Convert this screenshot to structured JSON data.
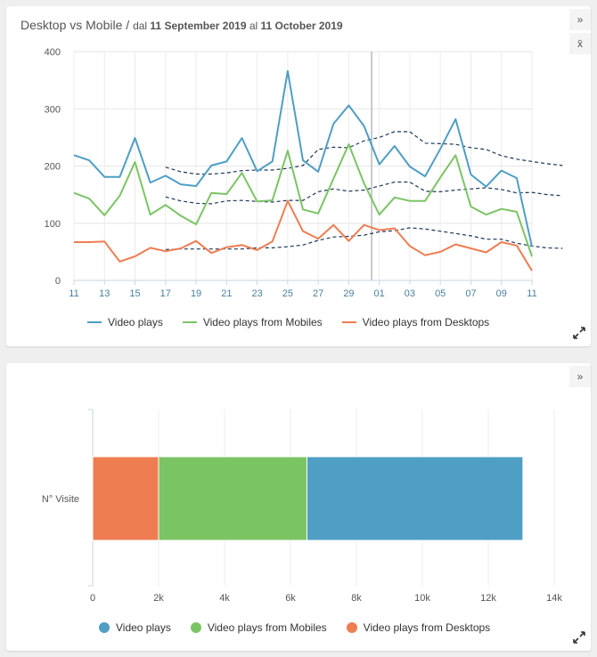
{
  "card1": {
    "title_prefix": "Desktop vs Mobile / ",
    "title_dal": "dal ",
    "title_start": "11 September 2019",
    "title_al": " al ",
    "title_end": "11 October 2019",
    "sidebar_buttons": [
      "»",
      "x̄"
    ]
  },
  "card2": {
    "sidebar_buttons": [
      "»"
    ]
  },
  "colors": {
    "video_plays": "#4f9ec4",
    "mobiles": "#7bc464",
    "desktops": "#ee7d52",
    "trend": "#1d3557"
  },
  "chart_data": [
    {
      "type": "line",
      "xlabel": "",
      "ylabel": "",
      "ylim": [
        0,
        400
      ],
      "yticks": [
        "0",
        "100",
        "200",
        "300",
        "400"
      ],
      "x": [
        "11",
        "12",
        "13",
        "14",
        "15",
        "16",
        "17",
        "18",
        "19",
        "20",
        "21",
        "22",
        "23",
        "24",
        "25",
        "26",
        "27",
        "28",
        "29",
        "30",
        "01",
        "02",
        "03",
        "04",
        "05",
        "06",
        "07",
        "08",
        "09",
        "10",
        "11"
      ],
      "xtick_labels": [
        "11",
        "13",
        "15",
        "17",
        "19",
        "21",
        "23",
        "25",
        "27",
        "29",
        "01",
        "03",
        "05",
        "07",
        "09",
        "11"
      ],
      "vertical_marker_at": "30",
      "grid": true,
      "legend_position": "bottom",
      "series": [
        {
          "name": "Video plays",
          "color_key": "video_plays",
          "values": [
            219,
            210,
            181,
            181,
            249,
            171,
            183,
            168,
            165,
            201,
            208,
            249,
            191,
            208,
            366,
            210,
            190,
            274,
            306,
            270,
            203,
            235,
            199,
            182,
            230,
            282,
            185,
            164,
            192,
            179,
            59
          ]
        },
        {
          "name": "Video plays from Mobiles",
          "color_key": "mobiles",
          "values": [
            153,
            143,
            114,
            148,
            207,
            115,
            132,
            113,
            98,
            153,
            151,
            188,
            138,
            140,
            227,
            124,
            117,
            178,
            238,
            170,
            115,
            145,
            139,
            139,
            180,
            219,
            129,
            115,
            125,
            120,
            42
          ]
        },
        {
          "name": "Video plays from Desktops",
          "color_key": "desktops",
          "values": [
            67,
            67,
            68,
            33,
            42,
            57,
            51,
            56,
            69,
            48,
            58,
            62,
            53,
            68,
            139,
            86,
            73,
            97,
            69,
            97,
            88,
            91,
            60,
            44,
            50,
            63,
            56,
            49,
            67,
            61,
            17
          ]
        }
      ],
      "trend_lines": [
        {
          "x_from": "17",
          "x_to": "10",
          "values": [
            198,
            190,
            186,
            186,
            188,
            192,
            193,
            193,
            196,
            201,
            229,
            233,
            232,
            244,
            250,
            260,
            260,
            240,
            239,
            238,
            232,
            229,
            218,
            212,
            208,
            204,
            201
          ]
        },
        {
          "x_from": "17",
          "x_to": "10",
          "values": [
            146,
            139,
            135,
            134,
            139,
            140,
            138,
            137,
            140,
            140,
            155,
            160,
            156,
            158,
            165,
            172,
            172,
            156,
            155,
            158,
            160,
            162,
            159,
            153,
            154,
            150,
            148
          ]
        },
        {
          "x_from": "17",
          "x_to": "10",
          "values": [
            54,
            55,
            55,
            55,
            55,
            55,
            57,
            57,
            59,
            62,
            70,
            76,
            77,
            79,
            85,
            87,
            92,
            90,
            86,
            82,
            78,
            72,
            72,
            65,
            60,
            57,
            56
          ]
        }
      ]
    },
    {
      "type": "bar",
      "orientation": "horizontal",
      "stacked": true,
      "categories": [
        "N° Visite"
      ],
      "xlim": [
        0,
        14000
      ],
      "xticks": [
        "0",
        "2k",
        "4k",
        "6k",
        "8k",
        "10k",
        "12k",
        "14k"
      ],
      "legend_position": "bottom",
      "series": [
        {
          "name": "Video plays from Desktops",
          "color_key": "desktops",
          "values": [
            2000
          ]
        },
        {
          "name": "Video plays from Mobiles",
          "color_key": "mobiles",
          "values": [
            4500
          ]
        },
        {
          "name": "Video plays",
          "color_key": "video_plays",
          "values": [
            6550
          ]
        }
      ],
      "legend_order": [
        "Video plays",
        "Video plays from Mobiles",
        "Video plays from Desktops"
      ]
    }
  ]
}
